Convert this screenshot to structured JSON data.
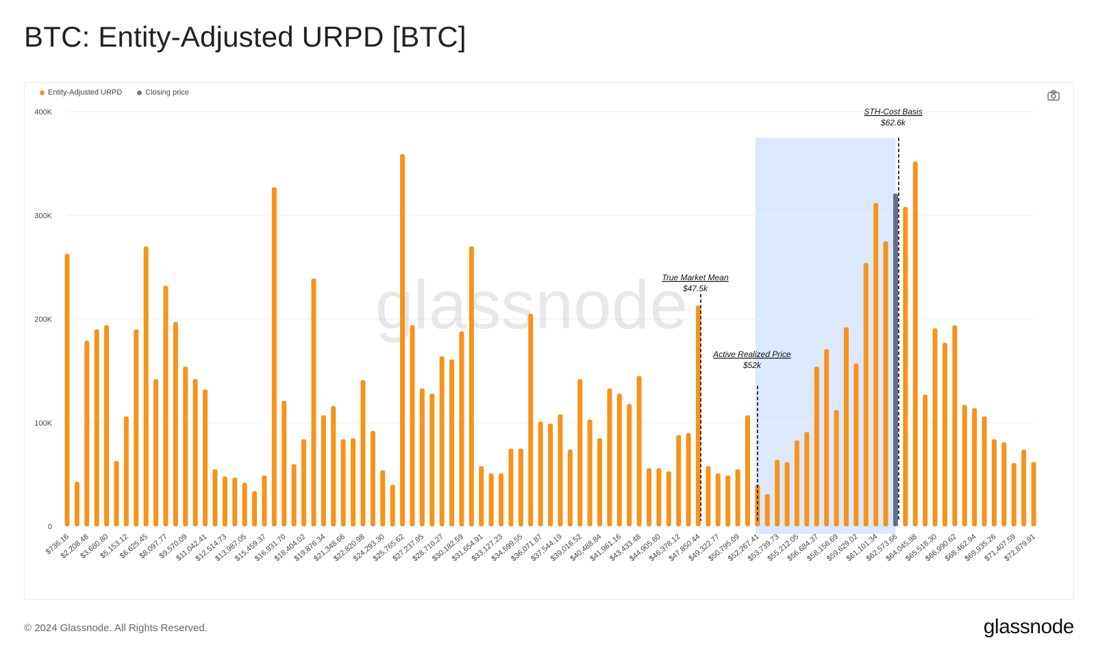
{
  "page": {
    "title": "BTC: Entity-Adjusted URPD [BTC]",
    "copyright": "© 2024 Glassnode. All Rights Reserved.",
    "brand": "glassnode",
    "watermark": "glassnode"
  },
  "legend": {
    "items": [
      {
        "label": "Entity-Adjusted URPD",
        "color": "#f7931a"
      },
      {
        "label": "Closing price",
        "color": "#777777"
      }
    ]
  },
  "colors": {
    "bar": "#f7931a",
    "highlight_bar": "#5f6f8c",
    "shade": "#dbe8fd",
    "grid": "#eeeeee",
    "axis_text": "#444444"
  },
  "chart_data": {
    "type": "bar",
    "title": "BTC: Entity-Adjusted URPD [BTC]",
    "xlabel": "",
    "ylabel": "",
    "ylim": [
      0,
      400000
    ],
    "yticks": [
      {
        "value": 0,
        "label": "0"
      },
      {
        "value": 100000,
        "label": "100K"
      },
      {
        "value": 200000,
        "label": "200K"
      },
      {
        "value": 300000,
        "label": "300K"
      },
      {
        "value": 400000,
        "label": "400K"
      }
    ],
    "grid": true,
    "legend_position": "top-left",
    "bar_count": 99,
    "xtick_labels": [
      "$736.16",
      "$2,208.48",
      "$3,680.80",
      "$5,153.12",
      "$6,625.45",
      "$8,097.77",
      "$9,570.09",
      "$11,042.41",
      "$12,514.73",
      "$13,987.05",
      "$15,459.37",
      "$16,931.70",
      "$18,404.02",
      "$19,876.34",
      "$21,348.66",
      "$22,820.98",
      "$24,293.30",
      "$25,765.62",
      "$27,237.95",
      "$28,710.27",
      "$30,182.59",
      "$31,654.91",
      "$33,127.23",
      "$34,599.55",
      "$36,071.87",
      "$37,544.19",
      "$39,016.52",
      "$40,488.84",
      "$41,961.16",
      "$43,433.48",
      "$44,905.80",
      "$46,378.12",
      "$47,850.44",
      "$49,322.77",
      "$50,795.09",
      "$52,267.41",
      "$53,739.73",
      "$55,212.05",
      "$56,684.37",
      "$58,156.69",
      "$59,629.02",
      "$61,101.34",
      "$62,573.66",
      "$64,045.98",
      "$65,518.30",
      "$66,990.62",
      "$68,462.94",
      "$69,935.26",
      "$71,407.59",
      "$72,879.91"
    ],
    "series": [
      {
        "name": "Entity-Adjusted URPD",
        "values": [
          263000,
          43000,
          179000,
          190000,
          194000,
          63000,
          106000,
          190000,
          270000,
          142000,
          232000,
          197000,
          154000,
          142000,
          132000,
          55000,
          48000,
          47000,
          42000,
          34000,
          49000,
          327000,
          121000,
          60000,
          84000,
          239000,
          107000,
          116000,
          84000,
          85000,
          141000,
          92000,
          54000,
          40000,
          359000,
          194000,
          133000,
          128000,
          164000,
          161000,
          188000,
          270000,
          58000,
          51000,
          51000,
          75000,
          75000,
          205000,
          101000,
          99000,
          108000,
          74000,
          142000,
          103000,
          85000,
          133000,
          128000,
          118000,
          145000,
          56000,
          56000,
          53000,
          88000,
          90000,
          213000,
          58000,
          51000,
          49000,
          55000,
          107000,
          40000,
          31000,
          64000,
          62000,
          83000,
          91000,
          154000,
          171000,
          112000,
          192000,
          157000,
          254000,
          312000,
          275000,
          321000,
          308000,
          352000,
          127000,
          191000,
          177000,
          194000,
          117000,
          114000,
          106000,
          84000,
          81000,
          61000,
          74000,
          62000
        ]
      }
    ],
    "highlight_bar_index": 84,
    "shaded_region": {
      "from_bar_index": 70,
      "to_bar_index": 84
    },
    "annotations": [
      {
        "line1": "True Market Mean",
        "line2": "$47.5k",
        "bar_index": 64
      },
      {
        "line1": "Active Realized Price",
        "line2": "$52k",
        "bar_index": 70
      },
      {
        "line1": "STH-Cost Basis",
        "line2": "$62.6k",
        "bar_index": 84
      }
    ]
  }
}
